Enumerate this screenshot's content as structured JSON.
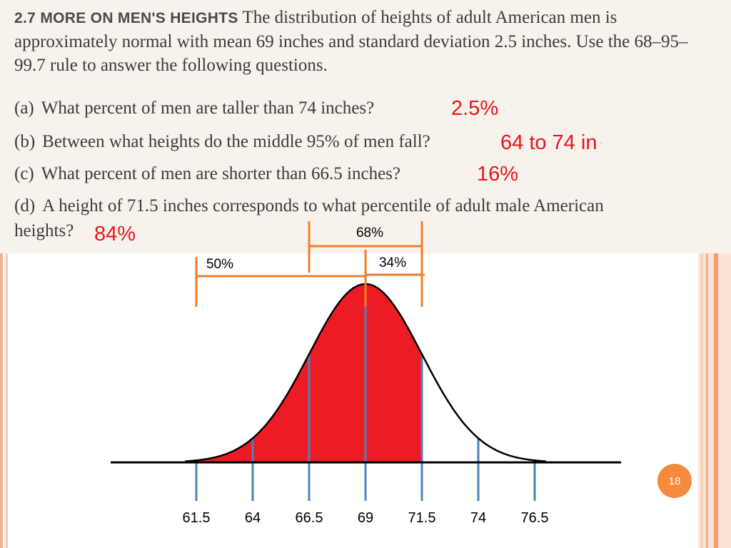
{
  "problem": {
    "number": "2.7",
    "heading": "MORE ON MEN'S HEIGHTS",
    "text": "The distribution of heights of adult American men is approximately normal with mean 69 inches and standard deviation 2.5 inches. Use the 68–95–99.7 rule to answer the following questions."
  },
  "questions": [
    {
      "letter": "(a)",
      "text": "What percent of men are taller than 74 inches?",
      "answer": "2.5%"
    },
    {
      "letter": "(b)",
      "text": "Between what heights do the middle 95% of men fall?",
      "answer": "64 to 74 in"
    },
    {
      "letter": "(c)",
      "text": "What percent of men are shorter than 66.5 inches?",
      "answer": "16%"
    },
    {
      "letter": "(d)",
      "text": "A height of 71.5 inches corresponds to what percentile of adult male American",
      "text_cont": "heights?",
      "answer": "84%"
    }
  ],
  "chart_data": {
    "type": "area",
    "distribution": "normal",
    "mean": 69,
    "sd": 2.5,
    "x_ticks": [
      "61.5",
      "64",
      "66.5",
      "69",
      "71.5",
      "74",
      "76.5"
    ],
    "x_tick_values": [
      61.5,
      64,
      66.5,
      69,
      71.5,
      74,
      76.5
    ],
    "shaded_below": 71.5,
    "brackets": [
      {
        "label": "50%",
        "from": 61.5,
        "to": 69
      },
      {
        "label": "68%",
        "from": 66.5,
        "to": 71.5
      },
      {
        "label": "34%",
        "from": 69,
        "to": 71.5
      }
    ],
    "colors": {
      "fill": "#ed1c24",
      "curve": "#000000",
      "ticks": "#4f81bd",
      "brackets": "#f07d2a"
    }
  },
  "page_number": "18"
}
